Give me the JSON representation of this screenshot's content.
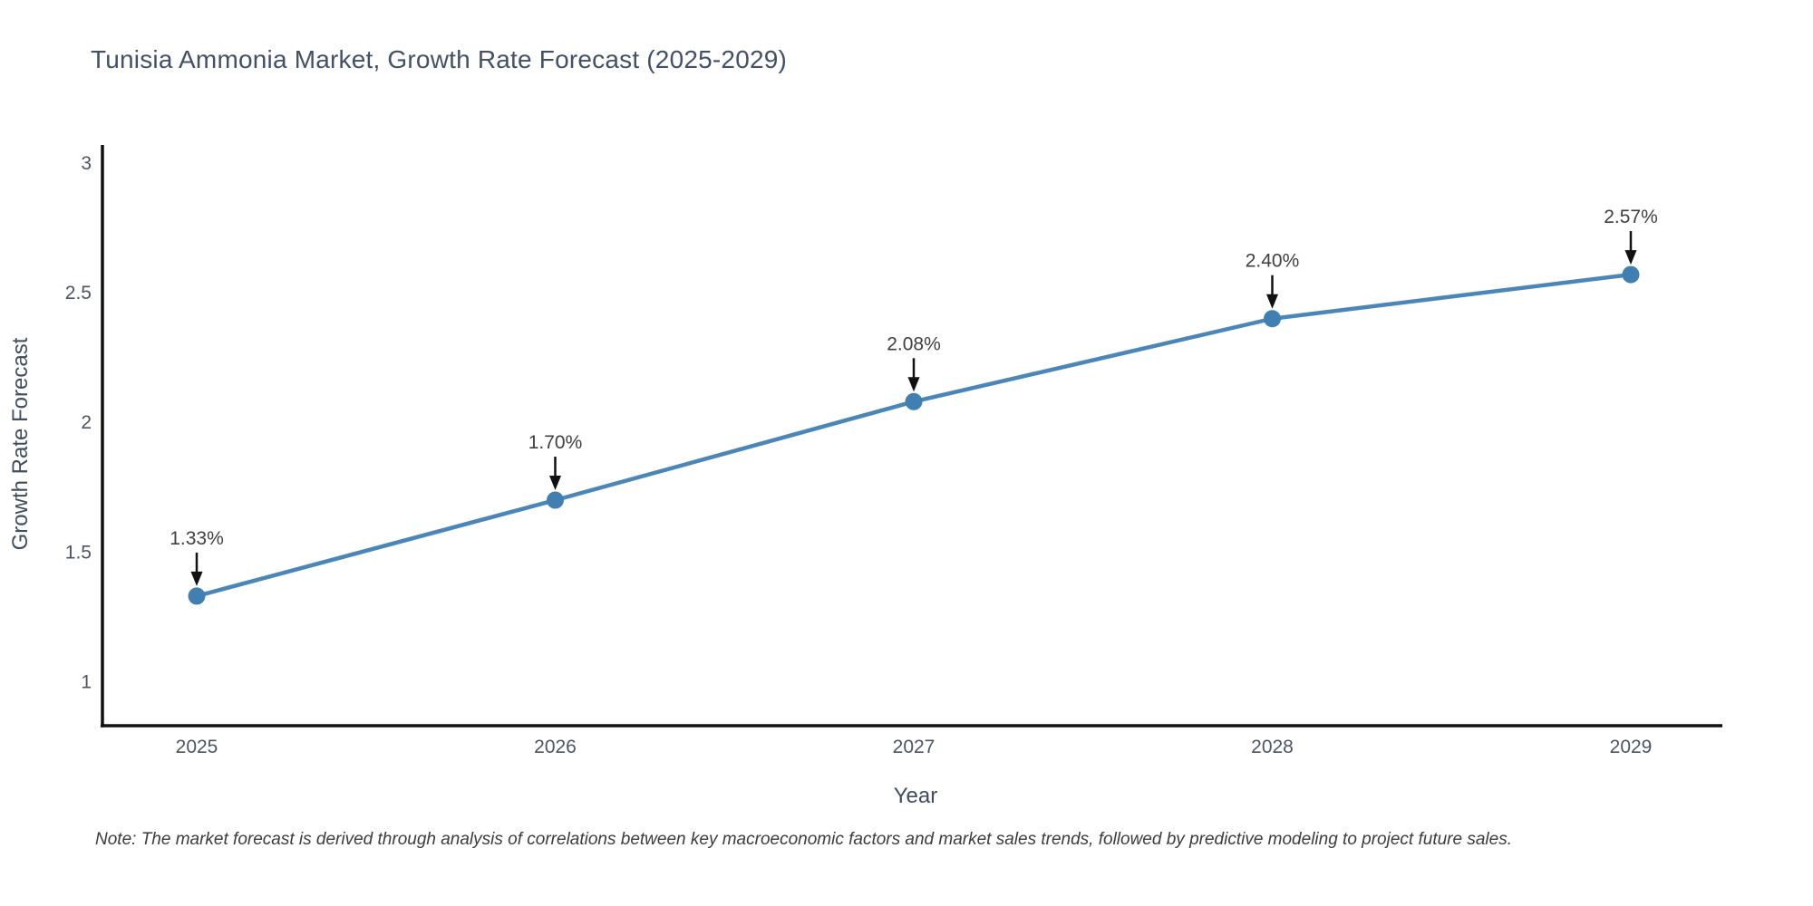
{
  "title": {
    "text": "Tunisia Ammonia Market, Growth Rate Forecast (2025-2029)"
  },
  "note": {
    "text": "Note: The market forecast is derived through analysis of correlations between key macroeconomic factors and market sales trends, followed by predictive modeling to project future sales."
  },
  "chart_data": {
    "type": "line",
    "title": "Tunisia Ammonia Market, Growth Rate Forecast (2025-2029)",
    "xlabel": "Year",
    "ylabel": "Growth Rate Forecast",
    "categories": [
      "2025",
      "2026",
      "2027",
      "2028",
      "2029"
    ],
    "series": [
      {
        "name": "Growth Rate Forecast",
        "values": [
          1.33,
          1.7,
          2.08,
          2.4,
          2.57
        ]
      }
    ],
    "point_labels": [
      "1.33%",
      "1.70%",
      "2.08%",
      "2.40%",
      "2.57%"
    ],
    "yticks": [
      1,
      1.5,
      2,
      2.5,
      3
    ],
    "ytick_labels": [
      "1",
      "1.5",
      "2",
      "2.5",
      "3"
    ],
    "ylim": [
      0.83,
      3.07
    ],
    "grid": false,
    "legend": "none",
    "annotation_arrows": true,
    "colors": {
      "line": "#4a86b8",
      "marker": "#3f7fb2",
      "axis": "#111111",
      "arrow": "#111111",
      "tick_label": "#4c5563",
      "annotation_text": "#404040",
      "title": "#425169",
      "axis_title": "#3f4d5e"
    }
  }
}
